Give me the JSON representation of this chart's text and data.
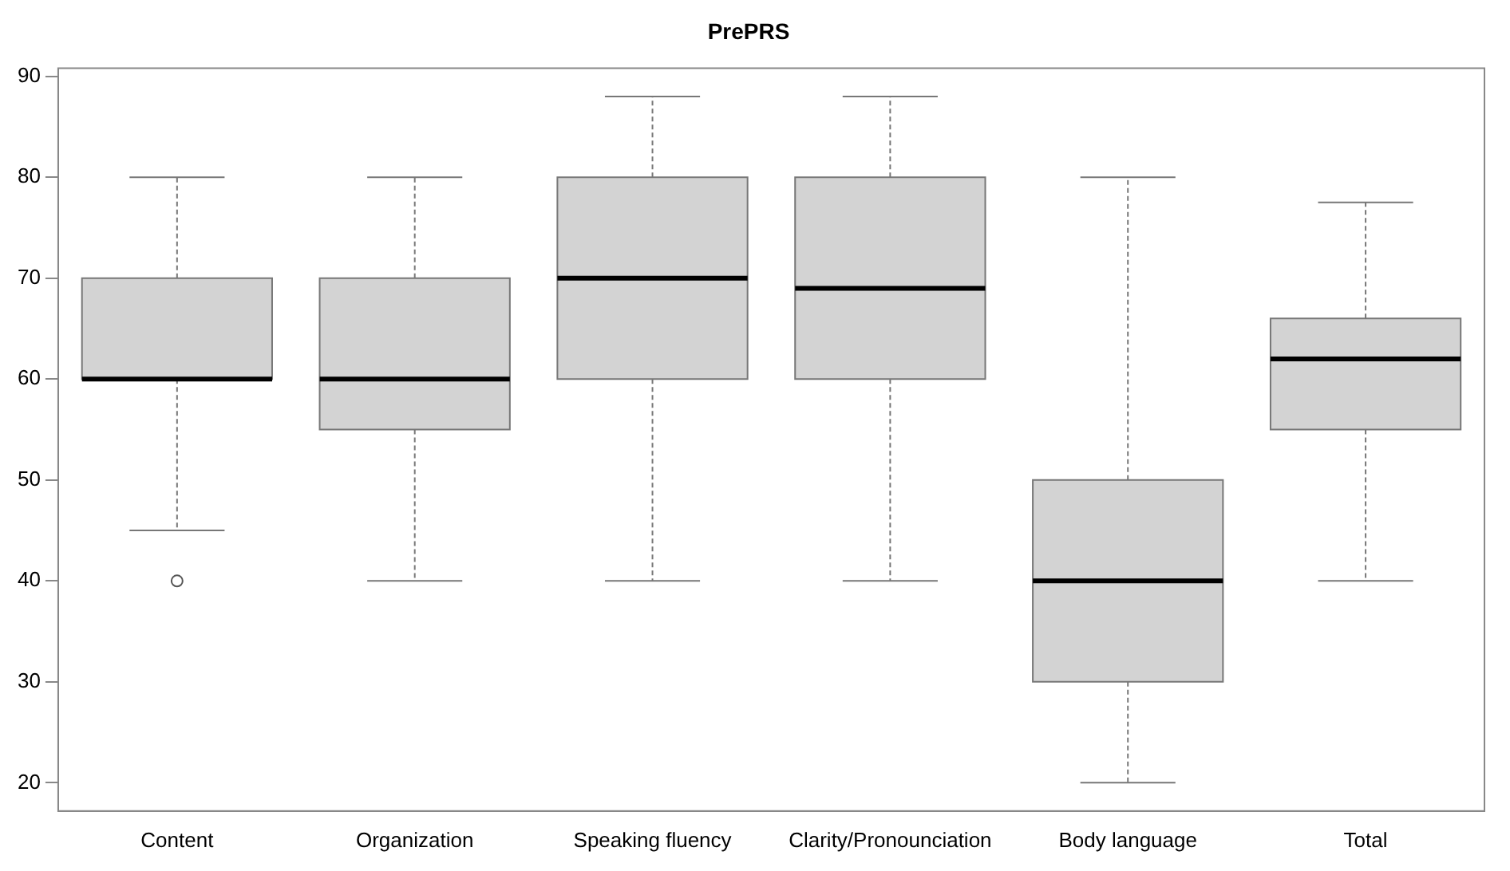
{
  "chart_data": {
    "type": "box",
    "title": "PrePRS",
    "categories": [
      "Content",
      "Organization",
      "Speaking fluency",
      "Clarity/Pronounciation",
      "Body language",
      "Total"
    ],
    "boxes": [
      {
        "low": 45,
        "q1": 60,
        "median": 60,
        "q3": 70,
        "high": 80,
        "outliers": [
          40
        ]
      },
      {
        "low": 40,
        "q1": 55,
        "median": 60,
        "q3": 70,
        "high": 80
      },
      {
        "low": 40,
        "q1": 60,
        "median": 70,
        "q3": 80,
        "high": 88
      },
      {
        "low": 40,
        "q1": 60,
        "median": 69,
        "q3": 80,
        "high": 88
      },
      {
        "low": 20,
        "q1": 30,
        "median": 40,
        "q3": 50,
        "high": 80
      },
      {
        "low": 40,
        "q1": 55,
        "median": 62,
        "q3": 66,
        "high": 77.5
      }
    ],
    "color": "#d3d3d3",
    "ylim": [
      17.2,
      90.8
    ],
    "yticks": [
      20,
      30,
      40,
      50,
      60,
      70,
      80,
      90
    ],
    "grid": false,
    "legend": false
  }
}
